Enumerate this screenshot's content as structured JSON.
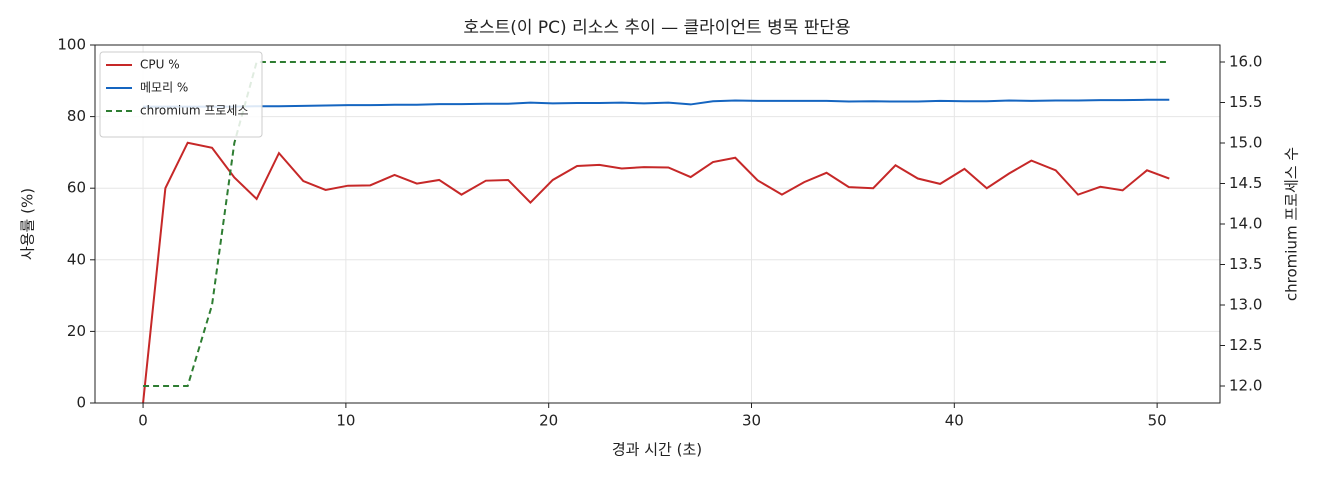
{
  "chart_data": {
    "type": "line",
    "title": "호스트(이 PC) 리소스 추이 — 클라이언트 병목 판단용",
    "x_label": "경과 시간 (초)",
    "y_label": "사용률 (%)",
    "y2_label": "chromium 프로세스 수",
    "x": [
      0,
      1.1,
      2.2,
      3.4,
      4.5,
      5.6,
      6.7,
      7.9,
      9,
      10.1,
      11.2,
      12.4,
      13.5,
      14.6,
      15.7,
      16.9,
      18,
      19.1,
      20.2,
      21.4,
      22.5,
      23.6,
      24.7,
      25.9,
      27,
      28.1,
      29.2,
      30.3,
      31.5,
      32.6,
      33.7,
      34.8,
      36,
      37.1,
      38.2,
      39.3,
      40.5,
      41.6,
      42.7,
      43.8,
      45,
      46.1,
      47.2,
      48.3,
      49.5,
      50.6
    ],
    "series": [
      {
        "name": "CPU %",
        "color": "#c62828",
        "linestyle": "solid",
        "values": [
          0,
          60,
          72.7,
          71.3,
          63,
          57,
          69.8,
          62,
          59.5,
          60.7,
          60.8,
          63.7,
          61.3,
          62.3,
          58.2,
          62.1,
          62.3,
          56,
          62.3,
          66.2,
          66.5,
          65.5,
          65.9,
          65.8,
          63.1,
          67.3,
          68.5,
          62.2,
          58.2,
          61.7,
          64.3,
          60.3,
          60,
          66.4,
          62.7,
          61.2,
          65.4,
          60,
          64.1,
          67.7,
          65,
          58.2,
          60.4,
          59.4,
          65,
          62.7
        ]
      },
      {
        "name": "메모리 %",
        "color": "#1565c0",
        "linestyle": "solid",
        "values": [
          82.8,
          82.8,
          82.8,
          82.8,
          82.8,
          82.9,
          82.9,
          83,
          83.1,
          83.2,
          83.2,
          83.3,
          83.3,
          83.5,
          83.5,
          83.6,
          83.6,
          83.9,
          83.7,
          83.8,
          83.8,
          83.9,
          83.7,
          83.9,
          83.4,
          84.3,
          84.5,
          84.4,
          84.4,
          84.4,
          84.4,
          84.2,
          84.3,
          84.2,
          84.2,
          84.4,
          84.3,
          84.3,
          84.5,
          84.4,
          84.5,
          84.5,
          84.6,
          84.6,
          84.7,
          84.7
        ]
      },
      {
        "name": "chromium 프로세스",
        "color": "#2e7d32",
        "linestyle": "dashed",
        "axis": "y2",
        "values": [
          12,
          12,
          12,
          13,
          15,
          16,
          16,
          16,
          16,
          16,
          16,
          16,
          16,
          16,
          16,
          16,
          16,
          16,
          16,
          16,
          16,
          16,
          16,
          16,
          16,
          16,
          16,
          16,
          16,
          16,
          16,
          16,
          16,
          16,
          16,
          16,
          16,
          16,
          16,
          16,
          16,
          16,
          16,
          16,
          16,
          16
        ]
      }
    ],
    "xlim": [
      -2.37,
      53.1
    ],
    "xticks": [
      0,
      10,
      20,
      30,
      40,
      50
    ],
    "ylim": [
      0,
      100
    ],
    "yticks": [
      0,
      20,
      40,
      60,
      80,
      100
    ],
    "y2lim": [
      11.79,
      16.21
    ],
    "y2ticks": [
      {
        "value": 12,
        "label": "12.0"
      },
      {
        "value": 12.5,
        "label": "12.5"
      },
      {
        "value": 13,
        "label": "13.0"
      },
      {
        "value": 13.5,
        "label": "13.5"
      },
      {
        "value": 14,
        "label": "14.0"
      },
      {
        "value": 14.5,
        "label": "14.5"
      },
      {
        "value": 15,
        "label": "15.0"
      },
      {
        "value": 15.5,
        "label": "15.5"
      },
      {
        "value": 16,
        "label": "16.0"
      }
    ],
    "grid": true,
    "legend": "upper-left"
  }
}
